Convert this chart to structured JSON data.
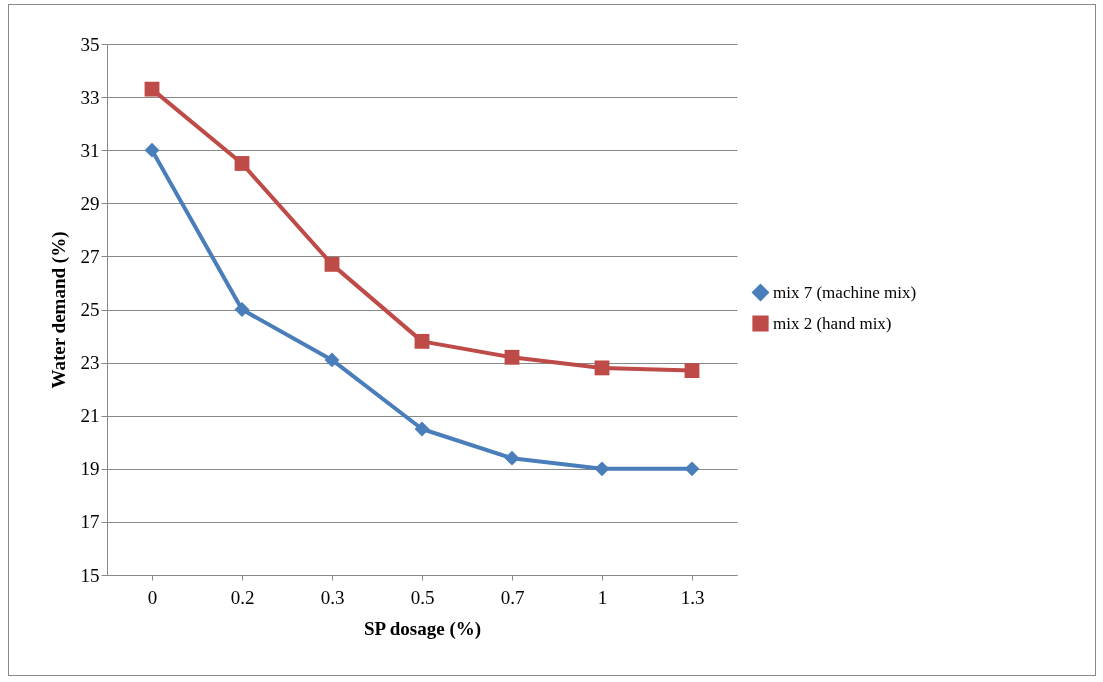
{
  "chart_data": {
    "type": "line",
    "xlabel": "SP dosage (%)",
    "ylabel": "Water demand (%)",
    "categories": [
      "0",
      "0.2",
      "0.3",
      "0.5",
      "0.7",
      "1",
      "1.3"
    ],
    "series": [
      {
        "name": "mix 7 (machine mix)",
        "color": "#4a7ebb",
        "marker": "diamond",
        "values": [
          31,
          25.0,
          23.1,
          20.5,
          19.4,
          19,
          19
        ]
      },
      {
        "name": "mix 2 (hand mix)",
        "color": "#be4b48",
        "marker": "square",
        "values": [
          33.3,
          30.5,
          26.7,
          23.8,
          23.2,
          22.8,
          22.7
        ]
      }
    ],
    "ylim": [
      15,
      35
    ],
    "yticks": [
      15,
      17,
      19,
      21,
      23,
      25,
      27,
      29,
      31,
      33,
      35
    ],
    "grid": "y",
    "legend": "right",
    "line_style": "solid"
  }
}
